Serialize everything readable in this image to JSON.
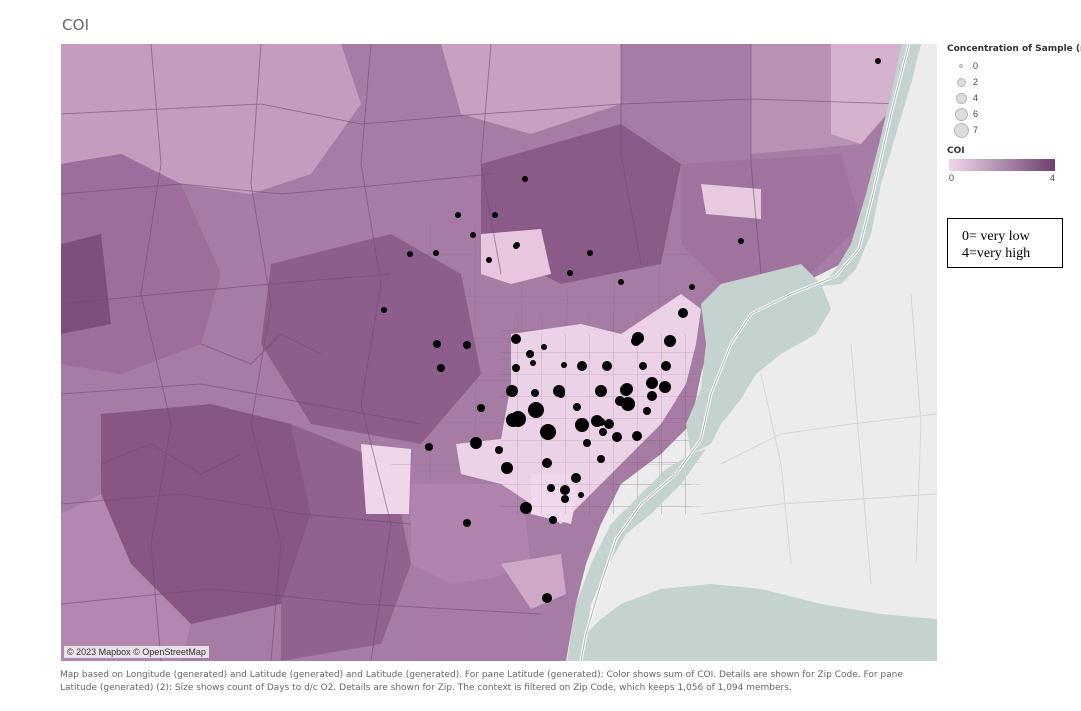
{
  "title": "COI",
  "attribution": "© 2023 Mapbox © OpenStreetMap",
  "legend": {
    "size_title": "Concentration of Sample (n)",
    "size_items": [
      {
        "label": "0",
        "value": 0
      },
      {
        "label": "2",
        "value": 2
      },
      {
        "label": "4",
        "value": 4
      },
      {
        "label": "6",
        "value": 6
      },
      {
        "label": "7",
        "value": 7
      }
    ],
    "color_title": "COI",
    "color_min": "0",
    "color_max": "4",
    "color_low": "#f0d7ea",
    "color_high": "#6e4070"
  },
  "note": {
    "line1": "0= very low",
    "line2": "4=very high"
  },
  "footnote": "Map based on Longitude (generated) and Latitude (generated) and Latitude (generated).  For pane Latitude (generated):  Color shows sum of COI.  Details are shown for Zip Code.  For pane Latitude (generated) (2):  Size shows count of Days to d/c O2.  Details are shown for Zip. The context is filtered on Zip Code, which keeps 1,056 of 1,094 members.",
  "colors": {
    "water": "#c4d2d0",
    "land": "#ebeceb",
    "dot": "#000000"
  }
}
